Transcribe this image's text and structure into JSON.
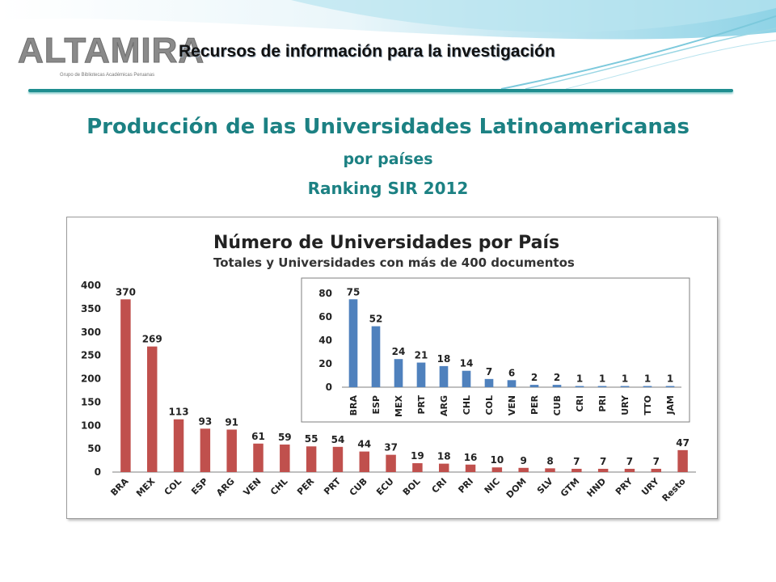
{
  "header": {
    "logo_text": "ALTAMIRA",
    "logo_subtitle": "Grupo de Bibliotecas Académicas Peruanas",
    "tagline": "Recursos de información para la investigación"
  },
  "slide": {
    "title": "Producción de las Universidades Latinoamericanas",
    "subtitle": "por países",
    "subtitle2": "Ranking SIR 2012"
  },
  "colors": {
    "accent": "#1c8183",
    "main_bar": "#c0504d",
    "inset_bar": "#4f81bd"
  },
  "chart_data": [
    {
      "type": "bar",
      "title": "Número de Universidades por País",
      "subtitle": "Totales y Universidades con más de 400 documentos",
      "categories": [
        "BRA",
        "MEX",
        "COL",
        "ESP",
        "ARG",
        "VEN",
        "CHL",
        "PER",
        "PRT",
        "CUB",
        "ECU",
        "BOL",
        "CRI",
        "PRI",
        "NIC",
        "DOM",
        "SLV",
        "GTM",
        "HND",
        "PRY",
        "URY",
        "Resto"
      ],
      "values": [
        370,
        269,
        113,
        93,
        91,
        61,
        59,
        55,
        54,
        44,
        37,
        19,
        18,
        16,
        10,
        9,
        8,
        7,
        7,
        7,
        7,
        47
      ],
      "yticks": [
        "0",
        "50",
        "100",
        "150",
        "200",
        "250",
        "300",
        "350",
        "400"
      ],
      "ylim": [
        0,
        400
      ],
      "legend": "none",
      "grid": false
    },
    {
      "type": "bar",
      "categories": [
        "BRA",
        "ESP",
        "MEX",
        "PRT",
        "ARG",
        "CHL",
        "COL",
        "VEN",
        "PER",
        "CUB",
        "CRI",
        "PRI",
        "URY",
        "TTO",
        "JAM"
      ],
      "values": [
        75,
        52,
        24,
        21,
        18,
        14,
        7,
        6,
        2,
        2,
        1,
        1,
        1,
        1,
        1
      ],
      "yticks": [
        "0",
        "20",
        "40",
        "60",
        "80"
      ],
      "ylim": [
        0,
        80
      ],
      "legend": "none",
      "grid": false
    }
  ]
}
